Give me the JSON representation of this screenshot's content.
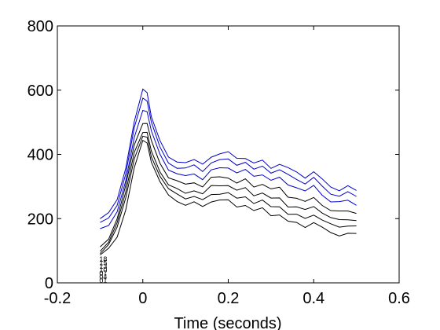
{
  "chart_data": {
    "type": "line",
    "xlabel": "Time (seconds)",
    "ylabel": "",
    "title": "",
    "xlim": [
      -0.2,
      0.6
    ],
    "ylim": [
      0,
      800
    ],
    "xticks": [
      "-0.2",
      "0",
      "0.2",
      "0.4",
      "0.6"
    ],
    "yticks": [
      "0",
      "200",
      "400",
      "600",
      "800"
    ],
    "grid": false,
    "colors": {
      "blue": "#0000cc",
      "black": "#000000"
    },
    "trace_labels": [
      "18",
      "15",
      "13",
      "10",
      "07",
      "04",
      "01"
    ],
    "x": [
      -0.1,
      -0.08,
      -0.06,
      -0.04,
      -0.02,
      0.0,
      0.01,
      0.02,
      0.04,
      0.06,
      0.08,
      0.1,
      0.12,
      0.14,
      0.16,
      0.18,
      0.2,
      0.22,
      0.24,
      0.26,
      0.28,
      0.3,
      0.32,
      0.34,
      0.36,
      0.38,
      0.4,
      0.42,
      0.44,
      0.46,
      0.48,
      0.5
    ],
    "series": [
      {
        "color": "blue",
        "values": [
          200,
          215,
          260,
          360,
          500,
          600,
          595,
          520,
          440,
          390,
          380,
          375,
          380,
          370,
          395,
          400,
          405,
          390,
          390,
          370,
          380,
          360,
          370,
          355,
          345,
          330,
          345,
          320,
          300,
          290,
          300,
          285
        ]
      },
      {
        "color": "blue",
        "values": [
          185,
          200,
          245,
          340,
          480,
          575,
          570,
          500,
          420,
          375,
          360,
          355,
          365,
          350,
          375,
          380,
          385,
          370,
          375,
          350,
          365,
          345,
          350,
          335,
          325,
          310,
          325,
          300,
          280,
          270,
          280,
          270
        ]
      },
      {
        "color": "blue",
        "values": [
          165,
          180,
          225,
          315,
          450,
          540,
          535,
          470,
          400,
          355,
          340,
          330,
          340,
          325,
          350,
          355,
          360,
          345,
          350,
          330,
          340,
          320,
          325,
          305,
          300,
          285,
          300,
          275,
          255,
          250,
          255,
          245
        ]
      },
      {
        "color": "black",
        "values": [
          110,
          140,
          200,
          300,
          430,
          500,
          495,
          440,
          375,
          330,
          315,
          305,
          315,
          300,
          325,
          330,
          330,
          310,
          320,
          300,
          310,
          290,
          295,
          270,
          265,
          250,
          265,
          245,
          225,
          220,
          225,
          220
        ]
      },
      {
        "color": "black",
        "values": [
          100,
          130,
          185,
          280,
          410,
          470,
          465,
          410,
          350,
          305,
          290,
          280,
          290,
          275,
          300,
          305,
          305,
          285,
          295,
          275,
          280,
          260,
          265,
          240,
          235,
          225,
          240,
          220,
          200,
          195,
          200,
          195
        ]
      },
      {
        "color": "black",
        "values": [
          95,
          120,
          170,
          265,
          390,
          455,
          450,
          395,
          335,
          290,
          275,
          265,
          270,
          255,
          275,
          280,
          280,
          260,
          270,
          250,
          255,
          235,
          240,
          215,
          210,
          200,
          215,
          195,
          180,
          175,
          180,
          175
        ]
      },
      {
        "color": "black",
        "values": [
          90,
          105,
          140,
          230,
          360,
          440,
          435,
          380,
          315,
          270,
          255,
          245,
          250,
          235,
          255,
          260,
          255,
          235,
          245,
          225,
          230,
          210,
          215,
          190,
          185,
          175,
          190,
          170,
          155,
          150,
          155,
          150
        ]
      }
    ]
  }
}
